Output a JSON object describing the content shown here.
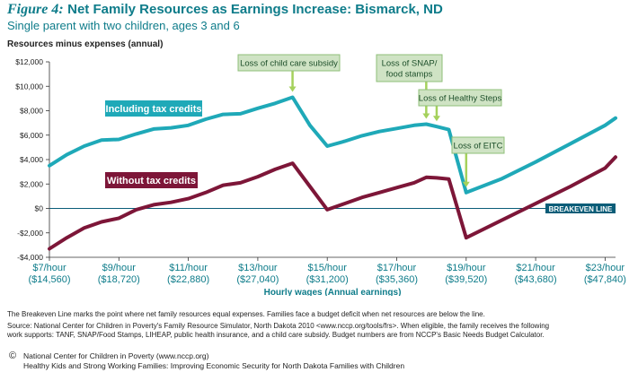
{
  "figure_label": "Figure 4:",
  "figure_title": "Net Family Resources as Earnings Increase: Bismarck, ND",
  "subtitle": "Single parent with two children, ages 3 and 6",
  "notes": {
    "breakeven": "The Breakeven Line marks the point where net family resources equal expenses. Families face a budget deficit when net resources are below the line.",
    "source_1": "Source: National Center for Children in Poverty's Family Resource Simulator, North Dakota 2010 <www.nccp.org/tools/frs>. When eligible, the family receives the following",
    "source_2": "work supports: TANF, SNAP/Food Stamps, LIHEAP, public health insurance, and a child care subsidy. Budget numbers are from NCCP's Basic Needs Budget Calculator."
  },
  "footer": {
    "symbol": "©",
    "line1": "National Center for Children in Poverty (www.nccp.org)",
    "line2": "Healthy Kids and Strong Working Families: Improving Economic Security for North Dakota Families with Children"
  },
  "colors": {
    "accent": "#0e7c8a",
    "with_credits": "#1fa9b8",
    "without_credits": "#7d1638",
    "annotation_bg": "#cfe3c4",
    "annotation_border": "#8fbf79",
    "pointer": "#a5d15c",
    "breakeven_bg": "#0a5d78"
  },
  "chart_data": {
    "type": "line",
    "ylabel": "Resources minus expenses (annual)",
    "xlabel": "Hourly wages (Annual earnings)",
    "xlim": [
      7,
      23.3
    ],
    "ylim": [
      -4000,
      12000
    ],
    "y_ticks": [
      12000,
      10000,
      8000,
      6000,
      4000,
      2000,
      0,
      -2000,
      -4000
    ],
    "y_tick_labels": [
      "$12,000",
      "$10,000",
      "$8,000",
      "$6,000",
      "$4,000",
      "$2,000",
      "$0",
      "-$2,000",
      "-$4,000"
    ],
    "x_ticks": [
      {
        "x": 7,
        "line1": "$7/hour",
        "line2": "($14,560)"
      },
      {
        "x": 9,
        "line1": "$9/hour",
        "line2": "($18,720)"
      },
      {
        "x": 11,
        "line1": "$11/hour",
        "line2": "($22,880)"
      },
      {
        "x": 13,
        "line1": "$13/hour",
        "line2": "($27,040)"
      },
      {
        "x": 15,
        "line1": "$15/hour",
        "line2": "($31,200)"
      },
      {
        "x": 17,
        "line1": "$17/hour",
        "line2": "($35,360)"
      },
      {
        "x": 19,
        "line1": "$19/hour",
        "line2": "($39,520)"
      },
      {
        "x": 21,
        "line1": "$21/hour",
        "line2": "($43,680)"
      },
      {
        "x": 23,
        "line1": "$23/hour",
        "line2": "($47,840)"
      }
    ],
    "series": [
      {
        "name": "Including tax credits",
        "x": [
          7.0,
          7.5,
          8.0,
          8.5,
          9.0,
          9.5,
          10.0,
          10.5,
          11.0,
          11.5,
          12.0,
          12.5,
          13.0,
          13.5,
          14.0,
          14.5,
          15.0,
          15.5,
          16.0,
          16.5,
          17.0,
          17.5,
          17.85,
          18.15,
          18.5,
          19.0,
          20.0,
          21.0,
          22.0,
          23.0,
          23.3
        ],
        "y": [
          3500,
          4400,
          5100,
          5600,
          5650,
          6100,
          6500,
          6600,
          6800,
          7300,
          7700,
          7750,
          8200,
          8600,
          9100,
          6800,
          5100,
          5500,
          5950,
          6300,
          6550,
          6800,
          6900,
          6700,
          6450,
          1300,
          2400,
          3800,
          5300,
          6800,
          7400
        ]
      },
      {
        "name": "Without tax credits",
        "x": [
          7.0,
          7.5,
          8.0,
          8.5,
          9.0,
          9.5,
          10.0,
          10.5,
          11.0,
          11.5,
          12.0,
          12.5,
          13.0,
          13.5,
          14.0,
          14.5,
          15.0,
          15.5,
          16.0,
          16.5,
          17.0,
          17.5,
          17.85,
          18.15,
          18.5,
          19.0,
          20.0,
          21.0,
          22.0,
          23.0,
          23.3
        ],
        "y": [
          -3300,
          -2400,
          -1600,
          -1100,
          -800,
          -100,
          300,
          500,
          800,
          1300,
          1900,
          2100,
          2600,
          3200,
          3700,
          1800,
          -100,
          400,
          900,
          1300,
          1700,
          2100,
          2550,
          2500,
          2400,
          -2400,
          -1000,
          400,
          1800,
          3300,
          4200
        ]
      }
    ],
    "series_labels": [
      {
        "text": "Including tax credits",
        "series": 0
      },
      {
        "text": "Without tax credits",
        "series": 1
      }
    ],
    "annotations": [
      {
        "lines": [
          "Loss of child care subsidy"
        ],
        "x": 14.0
      },
      {
        "lines": [
          "Loss of SNAP/",
          "food stamps"
        ],
        "x": 17.85
      },
      {
        "lines": [
          "Loss of Healthy Steps"
        ],
        "x": 18.15
      },
      {
        "lines": [
          "Loss of EITC"
        ],
        "x": 19.0
      }
    ],
    "breakeven_label": "BREAKEVEN LINE",
    "grid": false,
    "legend": "inline labels on lines"
  }
}
